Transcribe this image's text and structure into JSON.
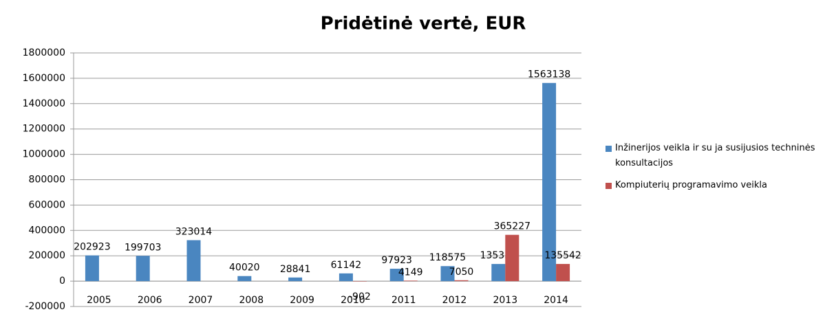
{
  "chart_data": {
    "type": "bar",
    "title": "Pridėtinė vertė, EUR",
    "categories": [
      "2005",
      "2006",
      "2007",
      "2008",
      "2009",
      "2010",
      "2011",
      "2012",
      "2013",
      "2014"
    ],
    "series": [
      {
        "name": "Inžinerijos veikla ir su ja susijusios techninės konsultacijos",
        "color": "#4a86c0",
        "values": [
          202923,
          199703,
          323014,
          40020,
          28841,
          61142,
          97923,
          118575,
          135351,
          1563138
        ]
      },
      {
        "name": "Kompiuterių programavimo veikla",
        "color": "#c0504d",
        "values": [
          null,
          null,
          null,
          null,
          null,
          -902,
          4149,
          7050,
          365227,
          135542
        ]
      }
    ],
    "ylim": [
      -200000,
      1800000
    ],
    "yticks": [
      -200000,
      0,
      200000,
      400000,
      600000,
      800000,
      1000000,
      1200000,
      1400000,
      1600000,
      1800000
    ],
    "grid": true,
    "legend": "right"
  }
}
